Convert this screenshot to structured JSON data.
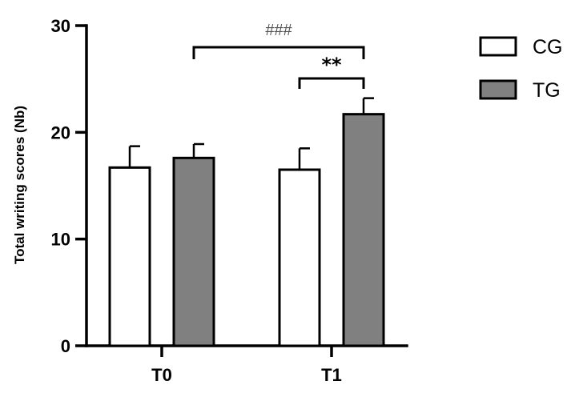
{
  "chart_data": {
    "type": "bar",
    "categories": [
      "T0",
      "T1"
    ],
    "series": [
      {
        "name": "CG",
        "values": [
          16.7,
          16.5
        ],
        "errors": [
          2.0,
          2.0
        ],
        "color": "#ffffff"
      },
      {
        "name": "TG",
        "values": [
          17.6,
          21.7
        ],
        "errors": [
          1.3,
          1.5
        ],
        "color": "#808080"
      }
    ],
    "ylabel": "Total writing scores (Nb)",
    "ylim": [
      0,
      30
    ],
    "yticks": [
      0,
      10,
      20,
      30
    ],
    "legend_position": "top-right",
    "grid": false,
    "annotations": [
      {
        "text": "###",
        "from": "TG T0",
        "to": "TG T1"
      },
      {
        "text": "**",
        "from": "CG T1",
        "to": "TG T1"
      }
    ]
  }
}
